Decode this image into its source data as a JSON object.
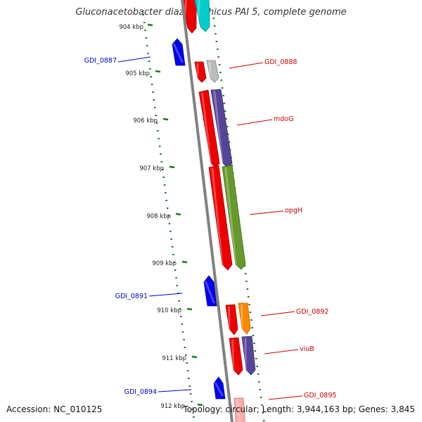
{
  "header": {
    "title": "Gluconacetobacter diazotrophicus PAI 5, complete genome"
  },
  "footer": {
    "accession": "Accession: NC_010125",
    "summary": "Topology: circular; Length: 3,944,163 bp; Genes: 3,845"
  },
  "colors": {
    "forward_label": "#cc0000",
    "reverse_label": "#0000cc",
    "backbone": "#808080",
    "tick_color": "#1a7a1a"
  },
  "kbp_labels": [
    "904 kbp",
    "905 kbp",
    "906 kbp",
    "907 kbp",
    "908 kbp",
    "909 kbp",
    "910 kbp",
    "911 kbp",
    "912 kbp"
  ],
  "gene_labels": [
    {
      "id": "gdi0887",
      "text": "GDI_0887",
      "strand": "reverse"
    },
    {
      "id": "gdi0888",
      "text": "GDI_0888",
      "strand": "forward"
    },
    {
      "id": "mdog",
      "text": "mdoG",
      "strand": "forward"
    },
    {
      "id": "opgh",
      "text": "opgH",
      "strand": "forward"
    },
    {
      "id": "gdi0891",
      "text": "GDI_0891",
      "strand": "reverse"
    },
    {
      "id": "gdi0892",
      "text": "GDI_0892",
      "strand": "forward"
    },
    {
      "id": "viub",
      "text": "viuB",
      "strand": "forward"
    },
    {
      "id": "gdi0894",
      "text": "GDI_0894",
      "strand": "reverse"
    },
    {
      "id": "gdi0895",
      "text": "GDI_0895",
      "strand": "forward"
    }
  ],
  "gene_features": [
    {
      "id": "f0",
      "strand": "forward",
      "color": "#ee0000",
      "track": "cds"
    },
    {
      "id": "f1",
      "strand": "forward",
      "color": "#00cccc",
      "track": "cog"
    },
    {
      "id": "f2",
      "strand": "reverse",
      "color": "#0000ee",
      "track": "cds"
    },
    {
      "id": "f3",
      "strand": "forward",
      "color": "#ee0000",
      "track": "cds"
    },
    {
      "id": "f4",
      "strand": "forward",
      "color": "#bbbbbb",
      "track": "cog"
    },
    {
      "id": "f5",
      "strand": "forward",
      "color": "#ee0000",
      "track": "cds"
    },
    {
      "id": "f6",
      "strand": "forward",
      "color": "#554499",
      "track": "cog"
    },
    {
      "id": "f7",
      "strand": "forward",
      "color": "#ee0000",
      "track": "cds"
    },
    {
      "id": "f8",
      "strand": "forward",
      "color": "#66992b",
      "track": "cog"
    },
    {
      "id": "f9",
      "strand": "reverse",
      "color": "#0000ee",
      "track": "cds"
    },
    {
      "id": "f10",
      "strand": "forward",
      "color": "#ee0000",
      "track": "cds"
    },
    {
      "id": "f11",
      "strand": "forward",
      "color": "#ff8800",
      "track": "cog"
    },
    {
      "id": "f12",
      "strand": "forward",
      "color": "#ee0000",
      "track": "cds"
    },
    {
      "id": "f13",
      "strand": "forward",
      "color": "#554499",
      "track": "cog"
    },
    {
      "id": "f14",
      "strand": "reverse",
      "color": "#0000ee",
      "track": "cds"
    },
    {
      "id": "f15",
      "strand": "forward",
      "color": "#ffaaaa",
      "track": "cds"
    }
  ]
}
